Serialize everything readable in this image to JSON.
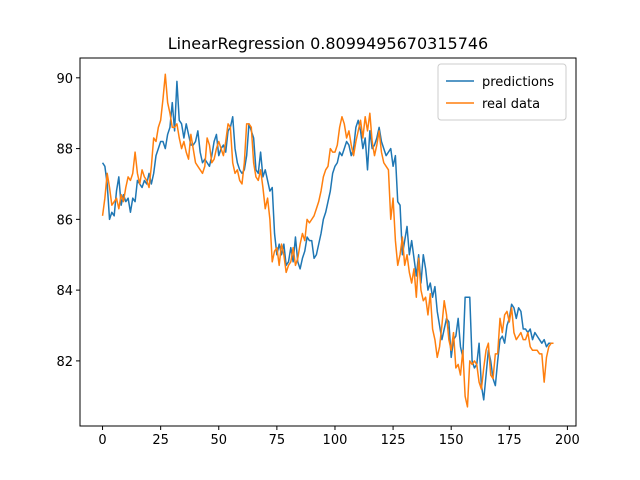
{
  "chart_data": {
    "type": "line",
    "title": "LinearRegression 0.8099495670315746",
    "x": [
      0,
      1,
      2,
      3,
      4,
      5,
      6,
      7,
      8,
      9,
      10,
      11,
      12,
      13,
      14,
      15,
      16,
      17,
      18,
      19,
      20,
      21,
      22,
      23,
      24,
      25,
      26,
      27,
      28,
      29,
      30,
      31,
      32,
      33,
      34,
      35,
      36,
      37,
      38,
      39,
      40,
      41,
      42,
      43,
      44,
      45,
      46,
      47,
      48,
      49,
      50,
      51,
      52,
      53,
      54,
      55,
      56,
      57,
      58,
      59,
      60,
      61,
      62,
      63,
      64,
      65,
      66,
      67,
      68,
      69,
      70,
      71,
      72,
      73,
      74,
      75,
      76,
      77,
      78,
      79,
      80,
      81,
      82,
      83,
      84,
      85,
      86,
      87,
      88,
      89,
      90,
      91,
      92,
      93,
      94,
      95,
      96,
      97,
      98,
      99,
      100,
      101,
      102,
      103,
      104,
      105,
      106,
      107,
      108,
      109,
      110,
      111,
      112,
      113,
      114,
      115,
      116,
      117,
      118,
      119,
      120,
      121,
      122,
      123,
      124,
      125,
      126,
      127,
      128,
      129,
      130,
      131,
      132,
      133,
      134,
      135,
      136,
      137,
      138,
      139,
      140,
      141,
      142,
      143,
      144,
      145,
      146,
      147,
      148,
      149,
      150,
      151,
      152,
      153,
      154,
      155,
      156,
      157,
      158,
      159,
      160,
      161,
      162,
      163,
      164,
      165,
      166,
      167,
      168,
      169,
      170,
      171,
      172,
      173,
      174,
      175,
      176,
      177,
      178,
      179,
      180,
      181,
      182,
      183,
      184,
      185,
      186,
      187,
      188,
      189,
      190,
      191,
      192,
      193,
      194
    ],
    "series": [
      {
        "name": "predictions",
        "color": "#1f77b4",
        "values": [
          87.6,
          87.5,
          87.0,
          86.0,
          86.2,
          86.1,
          86.8,
          87.2,
          86.4,
          86.7,
          86.5,
          86.6,
          86.2,
          86.6,
          86.5,
          87.1,
          87.0,
          86.9,
          87.1,
          87.0,
          87.3,
          87.0,
          87.3,
          87.8,
          88.0,
          88.2,
          88.2,
          88.0,
          88.4,
          88.6,
          89.3,
          88.5,
          89.9,
          88.8,
          88.7,
          88.3,
          88.7,
          88.4,
          88.1,
          88.1,
          88.2,
          88.5,
          87.9,
          87.6,
          87.7,
          87.6,
          87.5,
          87.8,
          88.2,
          88.4,
          87.8,
          88.0,
          88.1,
          87.9,
          88.5,
          88.6,
          88.9,
          88.0,
          87.6,
          87.4,
          87.3,
          87.4,
          87.8,
          88.7,
          88.5,
          88.3,
          87.4,
          87.3,
          87.9,
          87.2,
          87.4,
          87.1,
          86.8,
          86.9,
          85.6,
          85.0,
          85.3,
          85.0,
          85.3,
          84.7,
          84.8,
          85.2,
          84.8,
          85.5,
          84.8,
          84.6,
          84.9,
          85.1,
          85.5,
          85.4,
          85.4,
          84.9,
          85.0,
          85.3,
          85.6,
          86.0,
          86.2,
          86.5,
          86.8,
          87.3,
          87.5,
          87.6,
          87.9,
          87.8,
          88.0,
          88.2,
          88.1,
          87.8,
          88.0,
          88.6,
          88.8,
          88.5,
          88.0,
          88.3,
          87.4,
          88.5,
          88.0,
          88.1,
          88.3,
          88.6,
          88.2,
          88.0,
          87.8,
          87.9,
          88.0,
          87.5,
          87.8,
          86.5,
          86.4,
          85.0,
          85.4,
          85.8,
          85.0,
          85.4,
          84.9,
          84.4,
          85.0,
          84.2,
          85.0,
          84.6,
          84.0,
          84.2,
          83.8,
          84.1,
          83.4,
          83.0,
          82.6,
          82.9,
          83.2,
          83.1,
          82.1,
          82.6,
          82.7,
          83.2,
          82.4,
          82.1,
          83.8,
          83.8,
          83.8,
          82.0,
          81.8,
          81.9,
          82.5,
          81.3,
          80.9,
          81.6,
          82.3,
          82.0,
          81.5,
          81.3,
          82.0,
          82.6,
          82.7,
          82.5,
          83.0,
          83.2,
          83.6,
          83.5,
          83.2,
          83.5,
          83.4,
          82.9,
          82.9,
          82.8,
          82.9,
          82.6,
          82.8,
          82.7,
          82.6,
          82.5,
          82.6,
          82.4,
          82.5,
          82.5,
          82.5
        ]
      },
      {
        "name": "real data",
        "color": "#ff7f0e",
        "values": [
          86.1,
          86.6,
          87.3,
          86.9,
          86.4,
          86.5,
          86.6,
          86.3,
          86.7,
          86.5,
          86.9,
          87.2,
          87.1,
          87.3,
          87.9,
          87.3,
          87.0,
          87.4,
          87.2,
          87.1,
          86.9,
          87.5,
          88.3,
          88.2,
          88.6,
          88.8,
          89.4,
          90.1,
          89.3,
          89.0,
          88.6,
          88.6,
          88.7,
          88.3,
          88.0,
          88.2,
          87.9,
          87.7,
          88.4,
          88.0,
          87.6,
          87.5,
          87.4,
          87.3,
          87.5,
          88.3,
          88.1,
          87.6,
          87.7,
          88.0,
          88.2,
          88.0,
          87.8,
          88.2,
          88.7,
          88.6,
          87.6,
          87.3,
          87.4,
          87.1,
          87.0,
          87.6,
          88.7,
          88.7,
          88.6,
          87.6,
          87.2,
          87.1,
          87.4,
          86.9,
          86.3,
          86.6,
          86.0,
          84.8,
          85.1,
          85.2,
          84.7,
          85.3,
          85.0,
          84.5,
          84.7,
          84.8,
          85.2,
          84.7,
          84.9,
          85.3,
          85.6,
          85.4,
          86.0,
          85.9,
          86.0,
          86.1,
          86.3,
          86.5,
          86.8,
          87.2,
          87.4,
          87.5,
          88.0,
          87.9,
          87.9,
          88.1,
          88.6,
          88.9,
          88.7,
          88.3,
          88.5,
          88.1,
          87.8,
          88.2,
          88.5,
          88.8,
          88.3,
          88.9,
          88.5,
          89.0,
          88.2,
          87.8,
          88.1,
          88.5,
          87.9,
          87.6,
          87.5,
          87.4,
          86.0,
          86.6,
          85.4,
          84.7,
          85.0,
          85.5,
          84.7,
          85.0,
          84.5,
          84.2,
          84.6,
          83.8,
          84.9,
          84.0,
          83.7,
          83.8,
          83.3,
          83.9,
          82.9,
          82.6,
          82.1,
          82.4,
          83.0,
          83.7,
          83.3,
          82.6,
          82.3,
          82.8,
          81.8,
          81.9,
          81.6,
          82.3,
          81.0,
          80.7,
          82.0,
          81.9,
          82.0,
          81.9,
          81.4,
          81.2,
          81.8,
          82.3,
          82.5,
          81.6,
          81.5,
          82.2,
          82.2,
          83.2,
          82.8,
          83.3,
          83.4,
          83.1,
          83.5,
          82.8,
          82.6,
          82.7,
          82.8,
          82.6,
          82.6,
          82.8,
          82.4,
          82.3,
          82.3,
          82.3,
          82.2,
          82.2,
          81.4,
          82.1,
          82.4,
          82.5,
          82.5
        ]
      }
    ],
    "xlim": [
      -9.7,
      203.7
    ],
    "xticks": [
      0,
      25,
      50,
      75,
      100,
      125,
      150,
      175,
      200
    ],
    "ylim": [
      80.16,
      90.56
    ],
    "yticks": [
      82,
      84,
      86,
      88,
      90
    ],
    "legend": "upper right"
  }
}
